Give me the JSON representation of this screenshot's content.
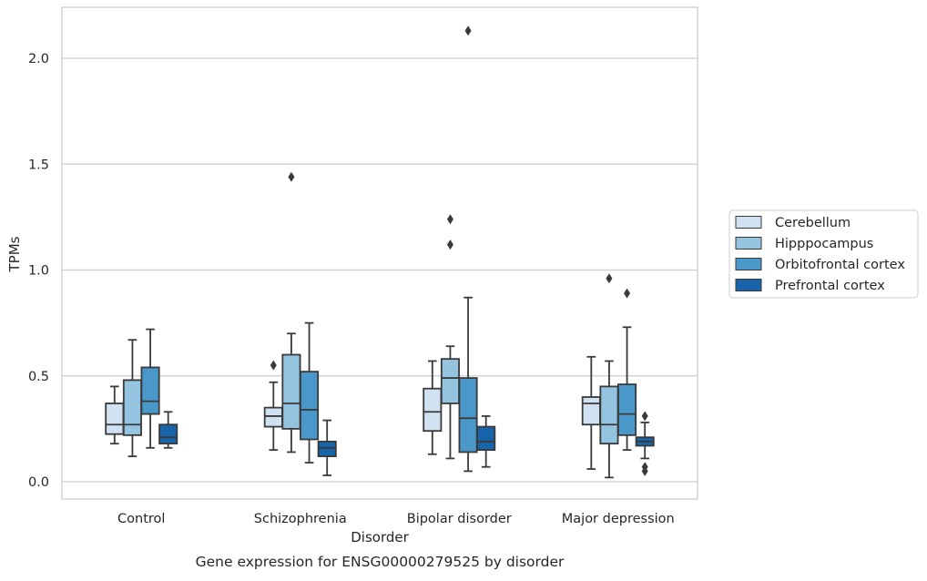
{
  "chart_data": {
    "type": "box",
    "title": "Gene expression for ENSG00000279525 by disorder",
    "xlabel": "Disorder",
    "ylabel": "TPMs",
    "ylim": [
      -0.08,
      2.3
    ],
    "yticks": [
      0.0,
      0.5,
      1.0,
      1.5,
      2.0
    ],
    "ytick_labels": [
      "0.0",
      "0.5",
      "1.0",
      "1.5",
      "2.0"
    ],
    "categories": [
      "Control",
      "Schizophrenia",
      "Bipolar disorder",
      "Major depression"
    ],
    "grid": "horizontal",
    "legend_position": "right",
    "colors": [
      "#d0e1f2",
      "#94c4df",
      "#4a98c9",
      "#1764ab"
    ],
    "series": [
      {
        "name": "Cerebellum",
        "boxes": [
          {
            "whislo": 0.18,
            "q1": 0.225,
            "med": 0.27,
            "q3": 0.37,
            "whishi": 0.45,
            "fliers": []
          },
          {
            "whislo": 0.15,
            "q1": 0.26,
            "med": 0.31,
            "q3": 0.35,
            "whishi": 0.47,
            "fliers": [
              0.55
            ]
          },
          {
            "whislo": 0.13,
            "q1": 0.24,
            "med": 0.33,
            "q3": 0.44,
            "whishi": 0.57,
            "fliers": []
          },
          {
            "whislo": 0.06,
            "q1": 0.27,
            "med": 0.37,
            "q3": 0.4,
            "whishi": 0.59,
            "fliers": []
          }
        ]
      },
      {
        "name": "Hipppocampus",
        "boxes": [
          {
            "whislo": 0.12,
            "q1": 0.22,
            "med": 0.27,
            "q3": 0.48,
            "whishi": 0.67,
            "fliers": []
          },
          {
            "whislo": 0.14,
            "q1": 0.25,
            "med": 0.37,
            "q3": 0.6,
            "whishi": 0.7,
            "fliers": [
              1.44
            ]
          },
          {
            "whislo": 0.11,
            "q1": 0.37,
            "med": 0.49,
            "q3": 0.58,
            "whishi": 0.64,
            "fliers": [
              1.24,
              1.12
            ]
          },
          {
            "whislo": 0.02,
            "q1": 0.18,
            "med": 0.27,
            "q3": 0.45,
            "whishi": 0.57,
            "fliers": [
              0.96
            ]
          }
        ]
      },
      {
        "name": "Orbitofrontal cortex",
        "boxes": [
          {
            "whislo": 0.16,
            "q1": 0.32,
            "med": 0.38,
            "q3": 0.54,
            "whishi": 0.72,
            "fliers": []
          },
          {
            "whislo": 0.09,
            "q1": 0.2,
            "med": 0.34,
            "q3": 0.52,
            "whishi": 0.75,
            "fliers": []
          },
          {
            "whislo": 0.05,
            "q1": 0.14,
            "med": 0.3,
            "q3": 0.49,
            "whishi": 0.87,
            "fliers": [
              2.13
            ]
          },
          {
            "whislo": 0.15,
            "q1": 0.22,
            "med": 0.32,
            "q3": 0.46,
            "whishi": 0.73,
            "fliers": [
              0.89
            ]
          }
        ]
      },
      {
        "name": "Prefrontal cortex",
        "boxes": [
          {
            "whislo": 0.16,
            "q1": 0.18,
            "med": 0.21,
            "q3": 0.27,
            "whishi": 0.33,
            "fliers": []
          },
          {
            "whislo": 0.03,
            "q1": 0.12,
            "med": 0.16,
            "q3": 0.19,
            "whishi": 0.29,
            "fliers": []
          },
          {
            "whislo": 0.07,
            "q1": 0.15,
            "med": 0.19,
            "q3": 0.26,
            "whishi": 0.31,
            "fliers": []
          },
          {
            "whislo": 0.11,
            "q1": 0.17,
            "med": 0.19,
            "q3": 0.21,
            "whishi": 0.28,
            "fliers": [
              0.31,
              0.07,
              0.05
            ]
          }
        ]
      }
    ]
  }
}
